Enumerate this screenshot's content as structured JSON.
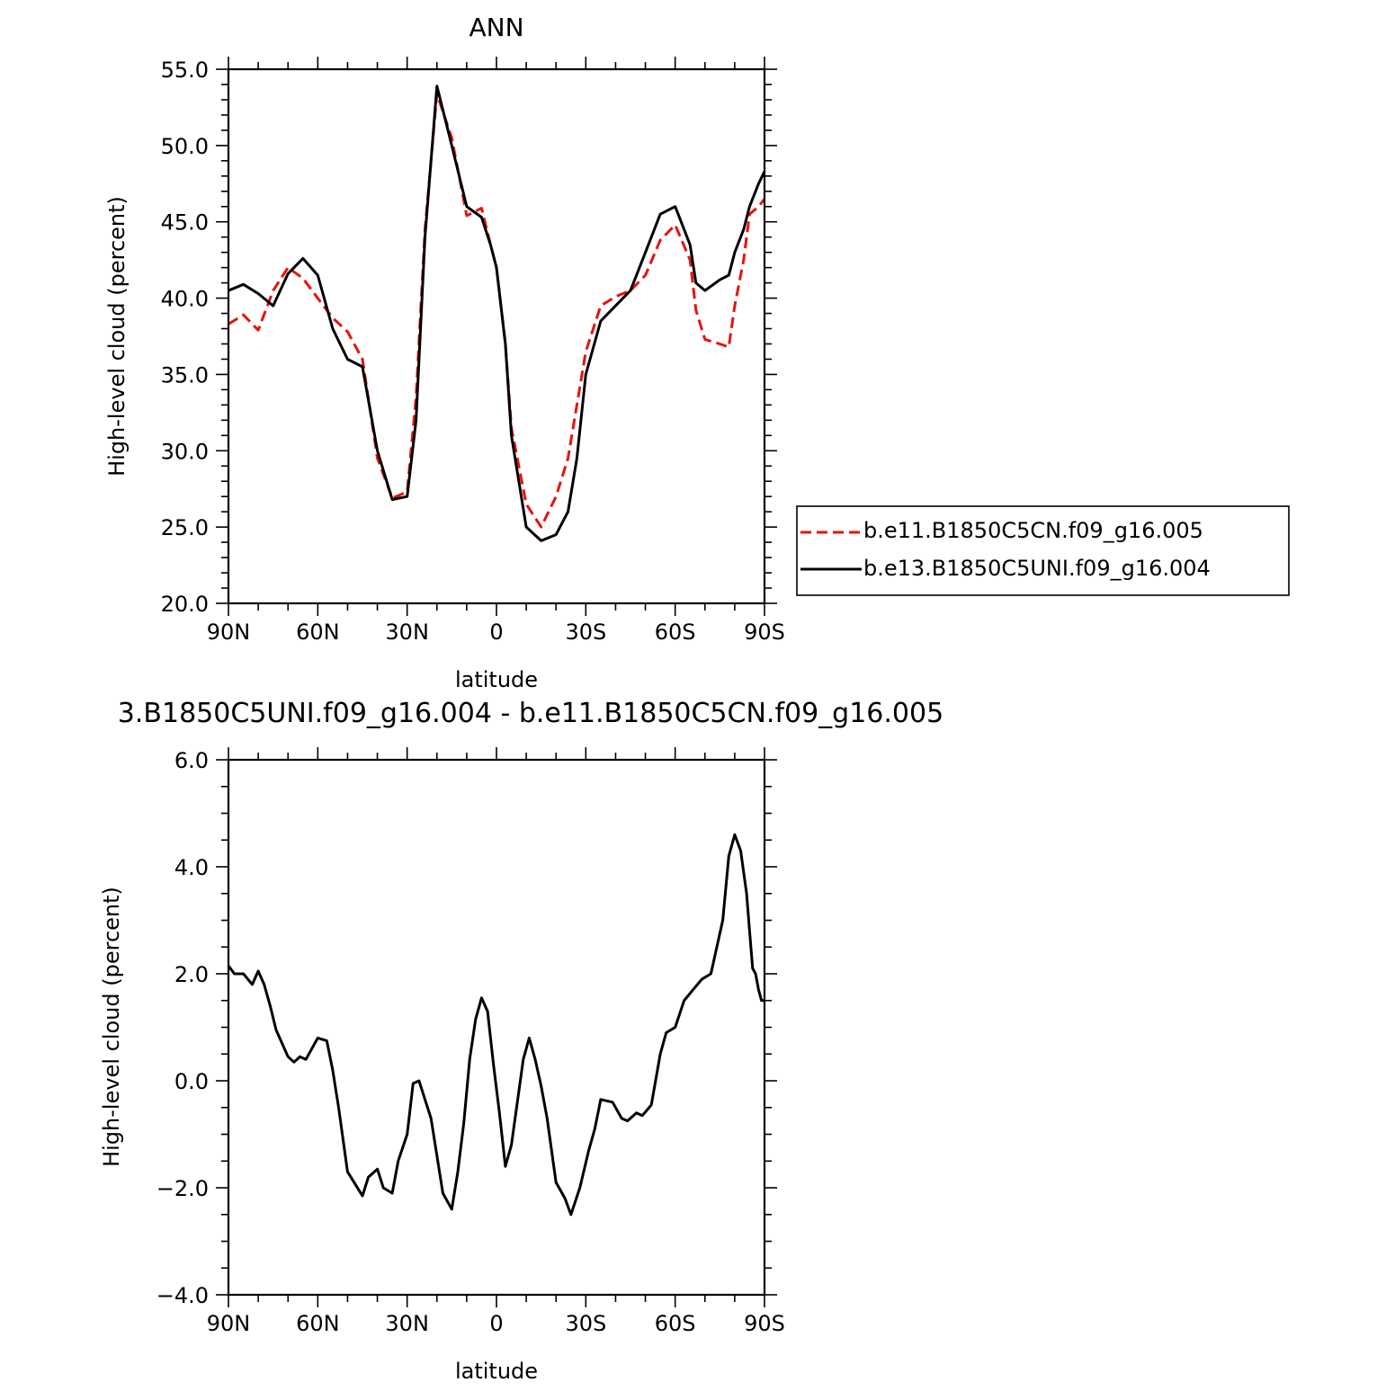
{
  "chart_data": [
    {
      "type": "line",
      "title": "ANN",
      "xlabel": "latitude",
      "ylabel": "High-level cloud (percent)",
      "xlim": [
        90,
        -90
      ],
      "ylim": [
        20,
        55
      ],
      "x_tick_labels": [
        "90N",
        "60N",
        "30N",
        "0",
        "30S",
        "60S",
        "90S"
      ],
      "y_tick_labels": [
        "20.0",
        "25.0",
        "30.0",
        "35.0",
        "40.0",
        "45.0",
        "50.0",
        "55.0"
      ],
      "legend_position": "right",
      "x": [
        90,
        85,
        80,
        75,
        70,
        65,
        60,
        55,
        50,
        45,
        40,
        35,
        30,
        27,
        24,
        20,
        15,
        10,
        5,
        2,
        0,
        -3,
        -5,
        -10,
        -15,
        -20,
        -24,
        -27,
        -30,
        -35,
        -40,
        -45,
        -50,
        -55,
        -60,
        -65,
        -67,
        -70,
        -75,
        -78,
        -80,
        -83,
        -85,
        -88,
        -90
      ],
      "series": [
        {
          "name": "b.e11.B1850C5CN.f09_g16.005",
          "color": "#e8130f",
          "dash": "dashed",
          "values": [
            38.3,
            38.9,
            37.9,
            40.5,
            42.0,
            41.3,
            40.0,
            38.7,
            37.8,
            36.0,
            29.5,
            26.9,
            27.3,
            33.5,
            44.5,
            53.4,
            50.5,
            45.4,
            45.9,
            43.5,
            42.0,
            37.0,
            31.5,
            26.5,
            25.0,
            27.0,
            29.5,
            33.0,
            36.5,
            39.5,
            40.1,
            40.5,
            41.5,
            43.8,
            44.8,
            42.5,
            39.2,
            37.3,
            37.0,
            36.8,
            39.5,
            42.5,
            45.5,
            46.0,
            46.5
          ]
        },
        {
          "name": "b.e13.B1850C5UNI.f09_g16.004",
          "color": "#000000",
          "dash": "solid",
          "values": [
            40.5,
            40.9,
            40.3,
            39.5,
            41.6,
            42.6,
            41.5,
            38.0,
            36.0,
            35.5,
            30.0,
            26.8,
            27.0,
            32.0,
            44.0,
            53.9,
            50.0,
            46.0,
            45.3,
            43.5,
            42.0,
            37.0,
            31.0,
            25.0,
            24.1,
            24.5,
            26.0,
            29.5,
            35.0,
            38.5,
            39.5,
            40.5,
            43.0,
            45.5,
            46.0,
            43.5,
            41.0,
            40.5,
            41.2,
            41.5,
            43.0,
            44.5,
            46.0,
            47.5,
            48.3
          ]
        }
      ]
    },
    {
      "type": "line",
      "title": "3.B1850C5UNI.f09_g16.004 - b.e11.B1850C5CN.f09_g16.005",
      "xlabel": "latitude",
      "ylabel": "High-level cloud (percent)",
      "xlim": [
        90,
        -90
      ],
      "ylim": [
        -4,
        6
      ],
      "x_tick_labels": [
        "90N",
        "60N",
        "30N",
        "0",
        "30S",
        "60S",
        "90S"
      ],
      "y_tick_labels": [
        "−4.0",
        "−2.0",
        "0.0",
        "2.0",
        "4.0",
        "6.0"
      ],
      "x": [
        90,
        88,
        85,
        82,
        80,
        78,
        76,
        74,
        70,
        68,
        66,
        64,
        62,
        60,
        57,
        55,
        53,
        50,
        45,
        43,
        40,
        38,
        35,
        33,
        30,
        28,
        26,
        24,
        22,
        18,
        15,
        13,
        11,
        9,
        7,
        5,
        3,
        1,
        -1,
        -3,
        -5,
        -7,
        -9,
        -11,
        -13,
        -15,
        -17,
        -20,
        -23,
        -25,
        -28,
        -31,
        -33,
        -35,
        -39,
        -42,
        -44,
        -47,
        -49,
        -52,
        -55,
        -57,
        -60,
        -63,
        -66,
        -69,
        -72,
        -76,
        -78,
        -80,
        -82,
        -84,
        -85,
        -86,
        -87,
        -88,
        -89,
        -90
      ],
      "series": [
        {
          "name": "",
          "color": "#000000",
          "values": [
            2.15,
            2.0,
            2.0,
            1.8,
            2.05,
            1.8,
            1.4,
            0.95,
            0.45,
            0.35,
            0.45,
            0.4,
            0.6,
            0.8,
            0.75,
            0.2,
            -0.5,
            -1.7,
            -2.15,
            -1.8,
            -1.65,
            -2.0,
            -2.1,
            -1.5,
            -1.0,
            -0.05,
            0.0,
            -0.35,
            -0.7,
            -2.1,
            -2.4,
            -1.7,
            -0.8,
            0.4,
            1.15,
            1.55,
            1.3,
            0.3,
            -0.6,
            -1.6,
            -1.2,
            -0.4,
            0.4,
            0.8,
            0.4,
            -0.1,
            -0.7,
            -1.9,
            -2.2,
            -2.5,
            -2.0,
            -1.3,
            -0.9,
            -0.35,
            -0.4,
            -0.7,
            -0.75,
            -0.6,
            -0.65,
            -0.45,
            0.5,
            0.9,
            1.0,
            1.5,
            1.7,
            1.9,
            2.0,
            3.0,
            4.2,
            4.6,
            4.3,
            3.5,
            2.8,
            2.1,
            2.0,
            1.7,
            1.5,
            1.5
          ]
        }
      ]
    }
  ]
}
